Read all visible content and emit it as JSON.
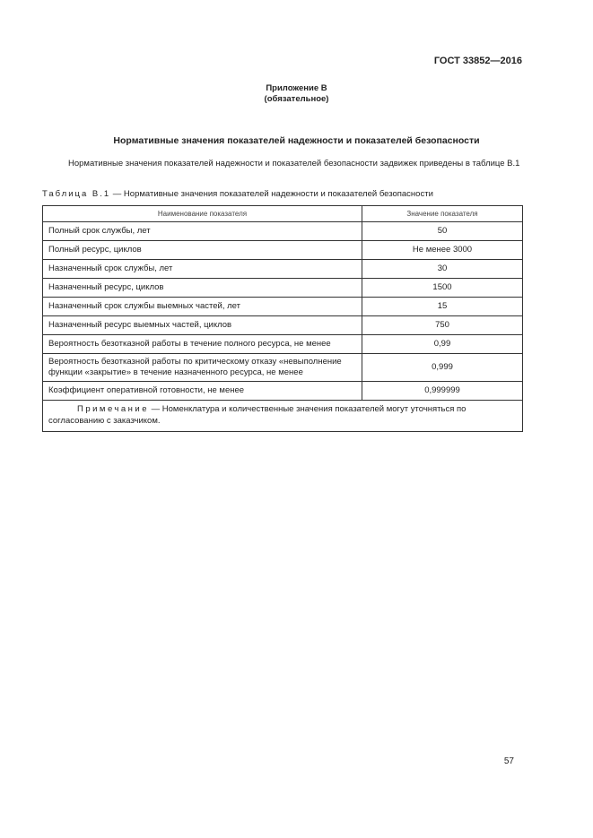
{
  "header": {
    "standard": "ГОСТ 33852—2016"
  },
  "appendix": {
    "title": "Приложение В",
    "status": "(обязательное)"
  },
  "section_title": "Нормативные значения показателей надежности и показателей безопасности",
  "intro": "Нормативные значения показателей надежности и показателей безопасности задвижек приведены в таблице В.1",
  "table": {
    "caption_prefix": "Таблица В.1",
    "caption_text": " — Нормативные значения показателей надежности и показателей безопасности",
    "headers": [
      "Наименование показателя",
      "Значение показателя"
    ],
    "rows": [
      [
        "Полный срок службы, лет",
        "50"
      ],
      [
        "Полный ресурс, циклов",
        "Не менее 3000"
      ],
      [
        "Назначенный срок службы, лет",
        "30"
      ],
      [
        "Назначенный ресурс, циклов",
        "1500"
      ],
      [
        "Назначенный срок службы выемных частей, лет",
        "15"
      ],
      [
        "Назначенный ресурс выемных частей, циклов",
        "750"
      ],
      [
        "Вероятность безотказной работы в течение полного ресурса, не менее",
        "0,99"
      ],
      [
        "Вероятность безотказной работы по критическому отказу «невыполнение функции «закрытие» в течение назначенного ресурса, не менее",
        "0,999"
      ],
      [
        "Коэффициент оперативной готовности, не менее",
        "0,999999"
      ]
    ],
    "note_label": "Примечание",
    "note_text": " — Номенклатура и количественные значения показателей могут уточняться по согласованию с заказчиком."
  },
  "page_number": "57"
}
